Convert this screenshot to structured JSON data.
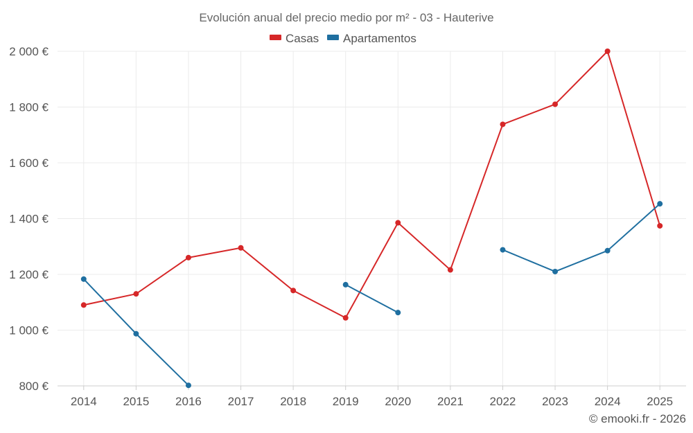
{
  "chart_data": {
    "type": "line",
    "title": "Evolución anual del precio medio por m² - 03 - Hauterive",
    "categories": [
      "2014",
      "2015",
      "2016",
      "2017",
      "2018",
      "2019",
      "2020",
      "2021",
      "2022",
      "2023",
      "2024",
      "2025"
    ],
    "y_ticks": [
      "800 €",
      "1 000 €",
      "1 200 €",
      "1 400 €",
      "1 600 €",
      "1 800 €",
      "2 000 €"
    ],
    "ylim": [
      800,
      2000
    ],
    "grid": true,
    "legend_position": "top-center",
    "series": [
      {
        "name": "Casas",
        "color": "#d62728",
        "values": [
          1090,
          1130,
          1260,
          1295,
          1142,
          1044,
          1385,
          1216,
          1738,
          1810,
          2000,
          1374
        ]
      },
      {
        "name": "Apartamentos",
        "color": "#1f6fa0",
        "values": [
          1183,
          987,
          802,
          null,
          null,
          1163,
          1063,
          null,
          1288,
          1210,
          1285,
          1453
        ]
      }
    ]
  },
  "credit": "© emooki.fr - 2026"
}
